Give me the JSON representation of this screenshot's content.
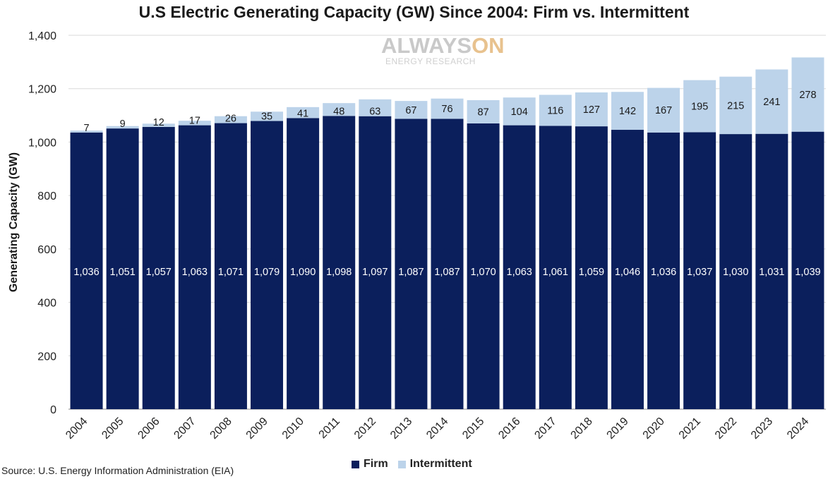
{
  "chart_data": {
    "type": "bar",
    "stacked": true,
    "title": "U.S Electric Generating Capacity (GW) Since 2004: Firm vs. Intermittent",
    "xlabel": "",
    "ylabel": "Generating Capacity (GW)",
    "ylim": [
      0,
      1400
    ],
    "yticks": [
      "0",
      "200",
      "400",
      "600",
      "800",
      "1,000",
      "1,200",
      "1,400"
    ],
    "ytick_values": [
      0,
      200,
      400,
      600,
      800,
      1000,
      1200,
      1400
    ],
    "grid": true,
    "legend_position": "bottom",
    "categories": [
      "2004",
      "2005",
      "2006",
      "2007",
      "2008",
      "2009",
      "2010",
      "2011",
      "2012",
      "2013",
      "2014",
      "2015",
      "2016",
      "2017",
      "2018",
      "2019",
      "2020",
      "2021",
      "2022",
      "2023",
      "2024"
    ],
    "series": [
      {
        "name": "Firm",
        "color": "#0b1f5c",
        "values": [
          1036,
          1051,
          1057,
          1063,
          1071,
          1079,
          1090,
          1098,
          1097,
          1087,
          1087,
          1070,
          1063,
          1061,
          1059,
          1046,
          1036,
          1037,
          1030,
          1031,
          1039
        ],
        "labels": [
          "1,036",
          "1,051",
          "1,057",
          "1,063",
          "1,071",
          "1,079",
          "1,090",
          "1,098",
          "1,097",
          "1,087",
          "1,087",
          "1,070",
          "1,063",
          "1,061",
          "1,059",
          "1,046",
          "1,036",
          "1,037",
          "1,030",
          "1,031",
          "1,039"
        ]
      },
      {
        "name": "Intermittent",
        "color": "#bcd3ea",
        "values": [
          7,
          9,
          12,
          17,
          26,
          35,
          41,
          48,
          63,
          67,
          76,
          87,
          104,
          116,
          127,
          142,
          167,
          195,
          215,
          241,
          278
        ],
        "labels": [
          "7",
          "9",
          "12",
          "17",
          "26",
          "35",
          "41",
          "48",
          "63",
          "67",
          "76",
          "87",
          "104",
          "116",
          "127",
          "142",
          "167",
          "195",
          "215",
          "241",
          "278"
        ]
      }
    ]
  },
  "source": "Source: U.S. Energy Information Administration (EIA)",
  "watermark": {
    "brand_prefix": "ALWAYS",
    "brand_suffix": "ON",
    "subtitle": "ENERGY RESEARCH"
  },
  "colors": {
    "gridline": "#d9d9d9",
    "axis": "#888888",
    "firm_label": "#ffffff",
    "intermittent_label": "#1a1a1a"
  }
}
